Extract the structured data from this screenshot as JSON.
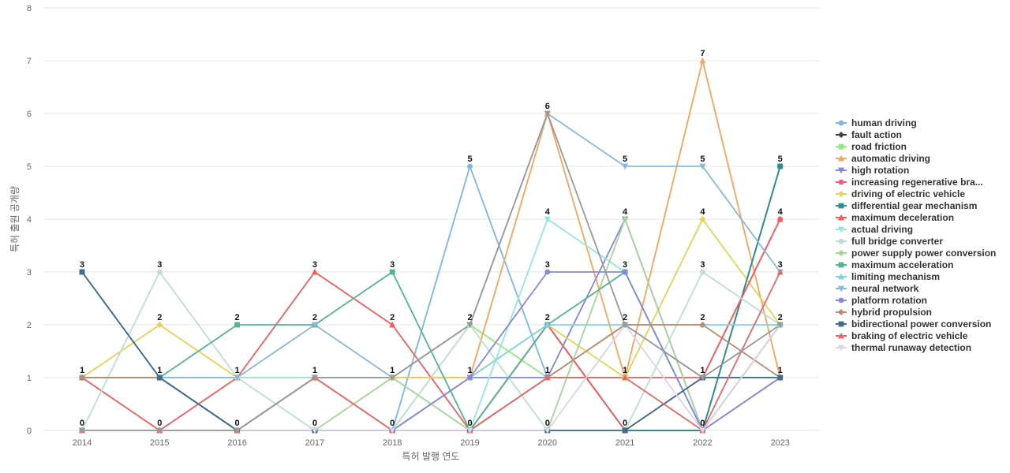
{
  "chart_data": {
    "type": "line",
    "xlabel": "특허 발행 연도",
    "ylabel": "특허 출원 공개량",
    "x": [
      2014,
      2015,
      2016,
      2017,
      2018,
      2019,
      2020,
      2021,
      2022,
      2023
    ],
    "ylim": [
      0,
      8
    ],
    "yticks": [
      0,
      1,
      2,
      3,
      4,
      5,
      6,
      7,
      8
    ],
    "grid": true,
    "legend_position": "right",
    "series": [
      {
        "name": "human driving",
        "color": "#7cb5ec",
        "marker": "circle",
        "values": [
          0,
          0,
          0,
          0,
          0,
          5,
          1,
          2,
          1,
          1
        ]
      },
      {
        "name": "fault action",
        "color": "#434348",
        "marker": "diamond",
        "values": [
          1,
          1,
          0,
          0,
          0,
          0,
          2,
          0,
          0,
          5
        ]
      },
      {
        "name": "road friction",
        "color": "#90ed7d",
        "marker": "square",
        "values": [
          0,
          0,
          0,
          0,
          0,
          2,
          1,
          1,
          1,
          1
        ]
      },
      {
        "name": "automatic driving",
        "color": "#f7a35c",
        "marker": "triangle",
        "values": [
          0,
          0,
          0,
          1,
          1,
          1,
          6,
          1,
          7,
          1
        ]
      },
      {
        "name": "high rotation",
        "color": "#8085e9",
        "marker": "triangle-down",
        "values": [
          0,
          0,
          0,
          0,
          0,
          1,
          1,
          4,
          0,
          1
        ]
      },
      {
        "name": "increasing regenerative bra...",
        "color": "#f15c80",
        "marker": "circle",
        "values": [
          0,
          0,
          0,
          0,
          0,
          0,
          1,
          1,
          1,
          4
        ]
      },
      {
        "name": "driving of electric vehicle",
        "color": "#e4d354",
        "marker": "diamond",
        "values": [
          1,
          2,
          1,
          1,
          1,
          1,
          2,
          1,
          4,
          2
        ]
      },
      {
        "name": "differential gear mechanism",
        "color": "#2b908f",
        "marker": "square",
        "values": [
          3,
          1,
          0,
          0,
          0,
          0,
          0,
          0,
          0,
          5
        ]
      },
      {
        "name": "maximum deceleration",
        "color": "#f45b5b",
        "marker": "triangle",
        "values": [
          1,
          0,
          1,
          3,
          2,
          0,
          2,
          0,
          1,
          4
        ]
      },
      {
        "name": "actual driving",
        "color": "#91e8e1",
        "marker": "triangle-down",
        "values": [
          1,
          1,
          1,
          1,
          1,
          0,
          4,
          3,
          0,
          3
        ]
      },
      {
        "name": "full bridge converter",
        "color": "#bcdfd2",
        "marker": "circle",
        "values": [
          0,
          3,
          1,
          0,
          0,
          2,
          0,
          0,
          3,
          2
        ]
      },
      {
        "name": "power supply power conversion",
        "color": "#a8d49c",
        "marker": "diamond",
        "values": [
          0,
          0,
          0,
          0,
          1,
          0,
          0,
          4,
          0,
          2
        ]
      },
      {
        "name": "maximum acceleration",
        "color": "#52b493",
        "marker": "square",
        "values": [
          1,
          1,
          2,
          2,
          3,
          0,
          2,
          3,
          0,
          2
        ]
      },
      {
        "name": "limiting mechanism",
        "color": "#7fd3e3",
        "marker": "triangle",
        "values": [
          0,
          0,
          0,
          0,
          0,
          1,
          2,
          2,
          2,
          2
        ]
      },
      {
        "name": "neural network",
        "color": "#89b8dc",
        "marker": "triangle-down",
        "values": [
          1,
          1,
          1,
          2,
          1,
          2,
          6,
          5,
          5,
          3
        ]
      },
      {
        "name": "platform rotation",
        "color": "#8886dd",
        "marker": "circle",
        "values": [
          0,
          0,
          0,
          0,
          0,
          1,
          3,
          3,
          0,
          1
        ]
      },
      {
        "name": "hybrid propulsion",
        "color": "#bb8a70",
        "marker": "diamond",
        "values": [
          1,
          1,
          0,
          1,
          0,
          0,
          1,
          2,
          2,
          1
        ]
      },
      {
        "name": "bidirectional power conversion",
        "color": "#3e6b8f",
        "marker": "square",
        "values": [
          3,
          1,
          0,
          0,
          0,
          0,
          0,
          0,
          1,
          1
        ]
      },
      {
        "name": "braking of electric vehicle",
        "color": "#e46a6a",
        "marker": "triangle",
        "values": [
          0,
          0,
          0,
          1,
          0,
          0,
          1,
          1,
          0,
          3
        ]
      },
      {
        "name": "thermal runaway detection",
        "color": "#dcd3e8",
        "marker": "triangle-down",
        "values": [
          0,
          0,
          0,
          0,
          0,
          0,
          0,
          2,
          0,
          2
        ]
      },
      {
        "name": "",
        "color": "#999999",
        "marker": "triangle-down",
        "values": [
          0,
          0,
          0,
          1,
          1,
          2,
          6,
          2,
          1,
          2
        ]
      }
    ],
    "data_labels": [
      {
        "x": 2014,
        "y": 3,
        "text": "3"
      },
      {
        "x": 2014,
        "y": 1,
        "text": "1"
      },
      {
        "x": 2014,
        "y": 0,
        "text": "0"
      },
      {
        "x": 2015,
        "y": 3,
        "text": "3"
      },
      {
        "x": 2015,
        "y": 2,
        "text": "2"
      },
      {
        "x": 2015,
        "y": 1,
        "text": "1"
      },
      {
        "x": 2015,
        "y": 0,
        "text": "0"
      },
      {
        "x": 2016,
        "y": 2,
        "text": "2"
      },
      {
        "x": 2016,
        "y": 1,
        "text": "1"
      },
      {
        "x": 2016,
        "y": 0,
        "text": "0"
      },
      {
        "x": 2017,
        "y": 3,
        "text": "3"
      },
      {
        "x": 2017,
        "y": 2,
        "text": "2"
      },
      {
        "x": 2017,
        "y": 1,
        "text": "1"
      },
      {
        "x": 2017,
        "y": 0,
        "text": "0"
      },
      {
        "x": 2018,
        "y": 3,
        "text": "3"
      },
      {
        "x": 2018,
        "y": 2,
        "text": "2"
      },
      {
        "x": 2018,
        "y": 1,
        "text": "1"
      },
      {
        "x": 2018,
        "y": 0,
        "text": "0"
      },
      {
        "x": 2019,
        "y": 5,
        "text": "5"
      },
      {
        "x": 2019,
        "y": 2,
        "text": "2"
      },
      {
        "x": 2019,
        "y": 1,
        "text": "1"
      },
      {
        "x": 2019,
        "y": 0,
        "text": "0"
      },
      {
        "x": 2020,
        "y": 6,
        "text": "6"
      },
      {
        "x": 2020,
        "y": 4,
        "text": "4"
      },
      {
        "x": 2020,
        "y": 3,
        "text": "3"
      },
      {
        "x": 2020,
        "y": 2,
        "text": "2"
      },
      {
        "x": 2020,
        "y": 1,
        "text": "1"
      },
      {
        "x": 2020,
        "y": 0,
        "text": "0"
      },
      {
        "x": 2021,
        "y": 5,
        "text": "5"
      },
      {
        "x": 2021,
        "y": 4,
        "text": "4"
      },
      {
        "x": 2021,
        "y": 3,
        "text": "3"
      },
      {
        "x": 2021,
        "y": 2,
        "text": "2"
      },
      {
        "x": 2021,
        "y": 1,
        "text": "1"
      },
      {
        "x": 2021,
        "y": 0,
        "text": "0"
      },
      {
        "x": 2022,
        "y": 7,
        "text": "7"
      },
      {
        "x": 2022,
        "y": 5,
        "text": "5"
      },
      {
        "x": 2022,
        "y": 4,
        "text": "4"
      },
      {
        "x": 2022,
        "y": 3,
        "text": "3"
      },
      {
        "x": 2022,
        "y": 2,
        "text": "2"
      },
      {
        "x": 2022,
        "y": 1,
        "text": "1"
      },
      {
        "x": 2022,
        "y": 0,
        "text": "0"
      },
      {
        "x": 2023,
        "y": 5,
        "text": "5"
      },
      {
        "x": 2023,
        "y": 4,
        "text": "4"
      },
      {
        "x": 2023,
        "y": 3,
        "text": "3"
      },
      {
        "x": 2023,
        "y": 2,
        "text": "2"
      },
      {
        "x": 2023,
        "y": 1,
        "text": "1"
      }
    ]
  }
}
